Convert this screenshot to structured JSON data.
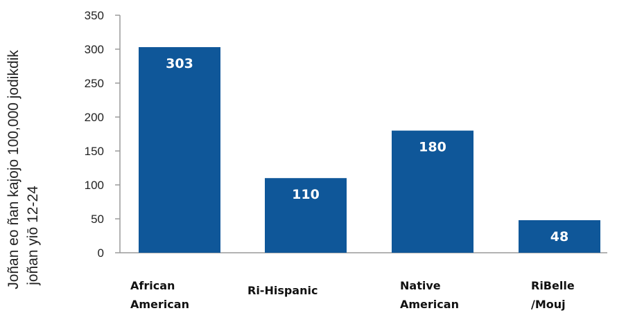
{
  "chart_data": {
    "type": "bar",
    "categories": [
      [
        "African",
        "American"
      ],
      [
        "Ri-Hispanic"
      ],
      [
        "Native",
        "American"
      ],
      [
        "RiBelle",
        "/Mouj"
      ]
    ],
    "values": [
      303,
      110,
      180,
      48
    ],
    "data_labels": [
      "303",
      "110",
      "180",
      "48"
    ],
    "ylabel": [
      "Joñan eo ñan kajojo 100,000 jodikdik",
      "joñan yiō 12-24"
    ],
    "ylim": [
      0,
      350
    ],
    "yticks": [
      "0",
      "50",
      "100",
      "150",
      "200",
      "250",
      "300",
      "350"
    ],
    "grid": false,
    "legend": "none",
    "bar_color": "#0f5799",
    "axis_color": "#9a9a9a"
  }
}
